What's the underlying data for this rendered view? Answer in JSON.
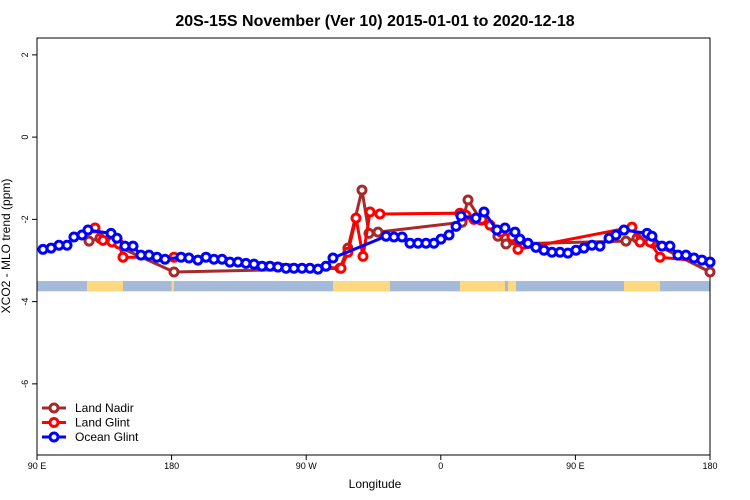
{
  "chart_data": {
    "type": "line",
    "title": "20S-15S November (Ver 10)   2015-01-01 to 2020-12-18",
    "xlabel": "Longitude",
    "ylabel": "XCO2 - MLO trend (ppm)",
    "xlim": [
      90,
      540
    ],
    "ylim": [
      -7.73,
      2.41
    ],
    "xticks": [
      {
        "value": 90,
        "label": "90 E"
      },
      {
        "value": 180,
        "label": "180"
      },
      {
        "value": 270,
        "label": "90 W"
      },
      {
        "value": 360,
        "label": "0"
      },
      {
        "value": 450,
        "label": "90 E"
      },
      {
        "value": 540,
        "label": "180"
      }
    ],
    "yticks": [
      2,
      0,
      -2,
      -4,
      -6
    ],
    "legend": "bottom-left",
    "band": {
      "ylim": [
        -3.75,
        -3.5
      ],
      "ocean_color": "#a5b9d9",
      "land_color": "#ffd97f",
      "land": [
        [
          123.4,
          147.5
        ],
        [
          180,
          181.5
        ],
        [
          287.9,
          326
        ],
        [
          372.8,
          402.9
        ],
        [
          404.9,
          410.3
        ],
        [
          482.5,
          506.6
        ]
      ]
    },
    "series": [
      {
        "name": "Land Nadir",
        "color": "#a52a2a",
        "x": [
          124.8,
          132.1,
          181.6,
          292.6,
          297.9,
          307.3,
          312.0,
          318.0,
          374.2,
          378.2,
          386.9,
          398.2,
          403.6,
          483.8,
          491.2,
          501.9,
          540.0
        ],
        "values": [
          -2.53,
          -2.46,
          -3.28,
          -3.19,
          -2.7,
          -1.29,
          -2.34,
          -2.31,
          -2.07,
          -1.53,
          -2.02,
          -2.41,
          -2.6,
          -2.53,
          -2.46,
          -2.58,
          -3.28
        ]
      },
      {
        "name": "Land Glint",
        "color": "#ff0000",
        "x": [
          128.8,
          134.1,
          140.1,
          144.8,
          147.5,
          181.6,
          293.3,
          297.9,
          303.3,
          308.0,
          312.7,
          319.3,
          372.8,
          376.8,
          382.2,
          387.5,
          392.9,
          400.2,
          407.6,
          411.6,
          487.8,
          493.2,
          499.9,
          506.6,
          540.0
        ],
        "values": [
          -2.21,
          -2.51,
          -2.55,
          -2.6,
          -2.92,
          -2.92,
          -3.19,
          -2.8,
          -1.97,
          -2.9,
          -1.82,
          -1.87,
          -1.85,
          -1.9,
          -2.0,
          -2.0,
          -2.14,
          -2.31,
          -2.43,
          -2.73,
          -2.19,
          -2.55,
          -2.55,
          -2.92,
          -3.04
        ]
      },
      {
        "name": "Ocean Glint",
        "color": "#0000ff",
        "x": [
          94.0,
          99.4,
          104.7,
          110.1,
          114.7,
          120.1,
          124.1,
          139.5,
          143.5,
          148.8,
          154.2,
          159.5,
          164.9,
          170.2,
          175.6,
          186.3,
          191.6,
          197.6,
          203.0,
          208.3,
          213.7,
          219.0,
          224.4,
          229.7,
          235.1,
          240.4,
          245.8,
          251.1,
          256.5,
          261.8,
          267.2,
          272.5,
          277.9,
          283.2,
          287.9,
          323.4,
          328.7,
          334.1,
          339.4,
          344.8,
          350.1,
          355.4,
          360.1,
          365.5,
          370.2,
          373.5,
          383.5,
          388.9,
          397.6,
          402.9,
          409.6,
          412.9,
          418.3,
          423.6,
          429.0,
          434.3,
          439.7,
          445.0,
          450.4,
          455.7,
          461.1,
          466.4,
          472.5,
          477.1,
          482.5,
          497.9,
          501.2,
          507.9,
          513.2,
          518.6,
          523.9,
          529.3,
          534.6,
          540.0
        ],
        "values": [
          -2.73,
          -2.7,
          -2.63,
          -2.63,
          -2.43,
          -2.38,
          -2.26,
          -2.34,
          -2.46,
          -2.65,
          -2.65,
          -2.87,
          -2.87,
          -2.92,
          -2.97,
          -2.92,
          -2.94,
          -2.99,
          -2.92,
          -2.97,
          -2.97,
          -3.04,
          -3.04,
          -3.07,
          -3.09,
          -3.14,
          -3.14,
          -3.16,
          -3.19,
          -3.19,
          -3.19,
          -3.19,
          -3.21,
          -3.14,
          -2.94,
          -2.41,
          -2.43,
          -2.43,
          -2.58,
          -2.58,
          -2.58,
          -2.58,
          -2.48,
          -2.38,
          -2.17,
          -1.92,
          -1.97,
          -1.82,
          -2.26,
          -2.21,
          -2.31,
          -2.48,
          -2.58,
          -2.68,
          -2.75,
          -2.8,
          -2.8,
          -2.82,
          -2.75,
          -2.7,
          -2.63,
          -2.65,
          -2.46,
          -2.38,
          -2.26,
          -2.34,
          -2.41,
          -2.65,
          -2.65,
          -2.87,
          -2.87,
          -2.94,
          -2.99,
          -3.04
        ]
      }
    ]
  }
}
